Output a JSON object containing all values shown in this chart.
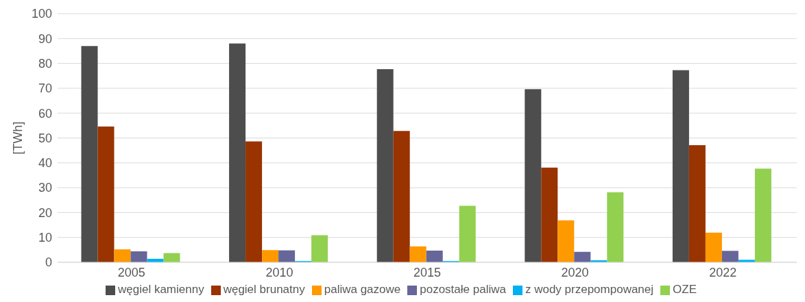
{
  "chart_data": {
    "type": "bar",
    "ylabel": "[TWh]",
    "categories": [
      "2005",
      "2010",
      "2015",
      "2020",
      "2022"
    ],
    "series": [
      {
        "name": "węgiel kamienny",
        "color": "#4d4d4d",
        "values": [
          87,
          88,
          77.7,
          69.6,
          77.3
        ]
      },
      {
        "name": "węgiel brunatny",
        "color": "#993300",
        "values": [
          54.6,
          48.6,
          52.8,
          38.1,
          47.1
        ]
      },
      {
        "name": "paliwa gazowe",
        "color": "#ff9900",
        "values": [
          5.2,
          4.9,
          6.4,
          16.9,
          11.9
        ]
      },
      {
        "name": "pozostałe paliwa",
        "color": "#666699",
        "values": [
          4.4,
          4.8,
          4.7,
          4.2,
          4.6
        ]
      },
      {
        "name": "z wody przepompowanej",
        "color": "#00b0f0",
        "values": [
          1.4,
          0.5,
          0.5,
          0.8,
          1.0
        ]
      },
      {
        "name": "OZE",
        "color": "#92d050",
        "values": [
          3.7,
          10.9,
          22.7,
          28.2,
          37.7
        ]
      }
    ],
    "ylim": [
      0,
      100
    ],
    "yticks": [
      0,
      10,
      20,
      30,
      40,
      50,
      60,
      70,
      80,
      90,
      100
    ],
    "grid": "y",
    "legend": "bottom"
  }
}
